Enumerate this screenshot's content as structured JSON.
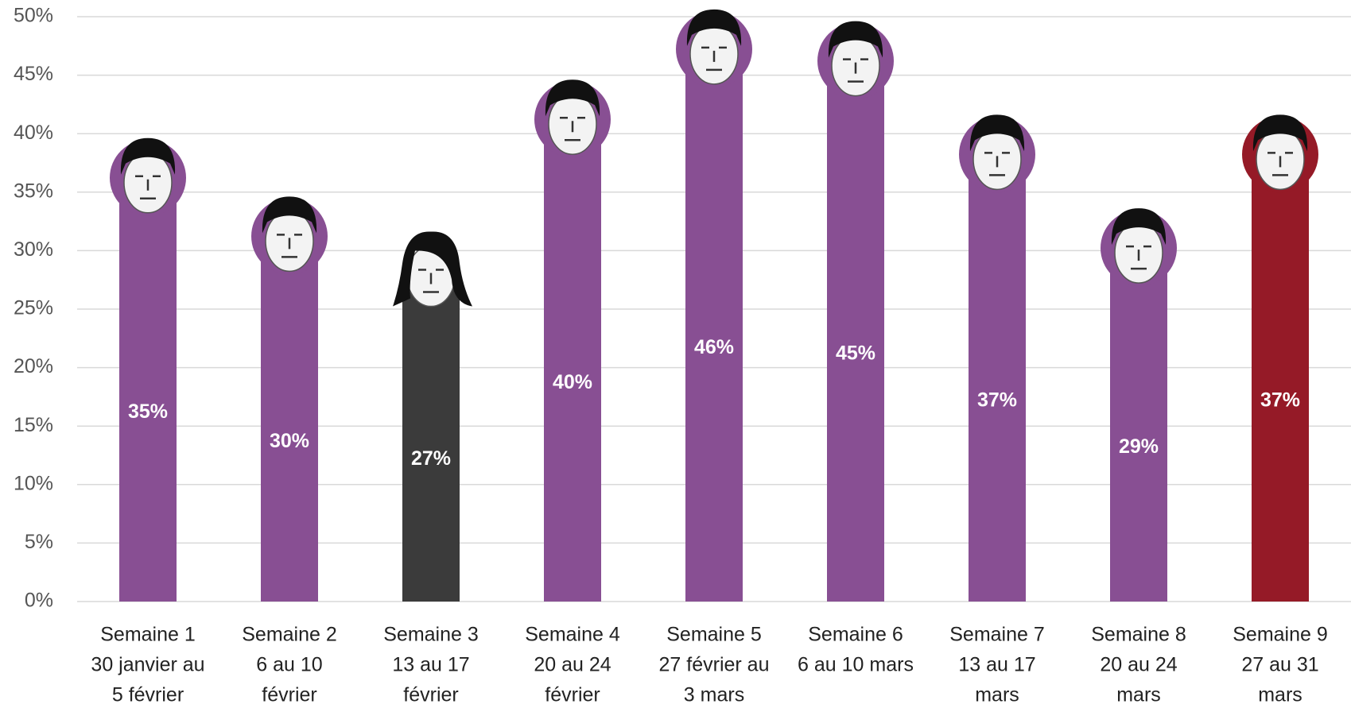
{
  "chart_data": {
    "type": "bar",
    "categories": [
      [
        "Semaine 1",
        "30 janvier au",
        "5 février"
      ],
      [
        "Semaine 2",
        "6 au 10",
        "février"
      ],
      [
        "Semaine 3",
        "13 au 17",
        "février"
      ],
      [
        "Semaine 4",
        "20 au 24",
        "février"
      ],
      [
        "Semaine 5",
        "27 février au",
        "3 mars"
      ],
      [
        "Semaine 6",
        "6 au 10 mars"
      ],
      [
        "Semaine 7",
        "13 au 17",
        "mars"
      ],
      [
        "Semaine 8",
        "20 au 24",
        "mars"
      ],
      [
        "Semaine 9",
        "27 au 31",
        "mars"
      ]
    ],
    "values": [
      35,
      30,
      27,
      40,
      46,
      45,
      37,
      29,
      37
    ],
    "value_labels": [
      "35%",
      "30%",
      "27%",
      "40%",
      "46%",
      "45%",
      "37%",
      "29%",
      "37%"
    ],
    "colors": [
      "#884f93",
      "#884f93",
      "#3b3b3b",
      "#884f93",
      "#884f93",
      "#884f93",
      "#884f93",
      "#884f93",
      "#951a27"
    ],
    "ylim": [
      0,
      50
    ],
    "yticks": [
      {
        "value": 0,
        "label": "0%"
      },
      {
        "value": 5,
        "label": "5%"
      },
      {
        "value": 10,
        "label": "10%"
      },
      {
        "value": 15,
        "label": "15%"
      },
      {
        "value": 20,
        "label": "20%"
      },
      {
        "value": 25,
        "label": "25%"
      },
      {
        "value": 30,
        "label": "30%"
      },
      {
        "value": 35,
        "label": "35%"
      },
      {
        "value": 40,
        "label": "40%"
      },
      {
        "value": 45,
        "label": "45%"
      },
      {
        "value": 50,
        "label": "50%"
      }
    ],
    "grid": true
  }
}
